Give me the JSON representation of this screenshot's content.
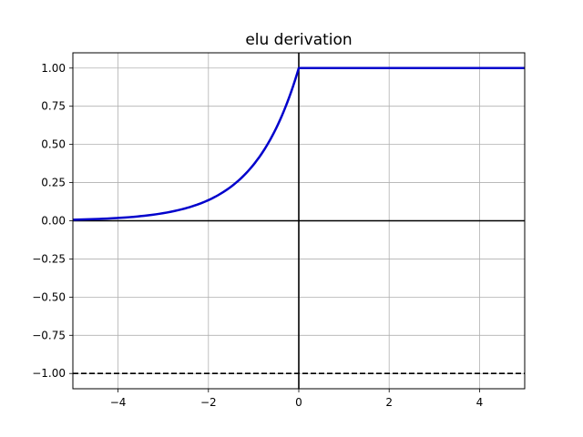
{
  "chart_data": {
    "type": "line",
    "title": "elu derivation",
    "xlabel": "",
    "ylabel": "",
    "xlim": [
      -5,
      5
    ],
    "ylim": [
      -1.1,
      1.1
    ],
    "grid": true,
    "x_ticks": [
      -4,
      -2,
      0,
      2,
      4
    ],
    "x_tick_labels": [
      "−4",
      "−2",
      "0",
      "2",
      "4"
    ],
    "y_ticks": [
      -1.0,
      -0.75,
      -0.5,
      -0.25,
      0.0,
      0.25,
      0.5,
      0.75,
      1.0
    ],
    "y_tick_labels": [
      "−1.00",
      "−0.75",
      "−0.50",
      "−0.25",
      "0.00",
      "0.25",
      "0.50",
      "0.75",
      "1.00"
    ],
    "series": [
      {
        "color": "#0000cc",
        "x": [
          -5,
          -4.5,
          -4,
          -3.5,
          -3,
          -2.5,
          -2,
          -1.75,
          -1.5,
          -1.25,
          -1,
          -0.75,
          -0.5,
          -0.25,
          0,
          0.01,
          1,
          2,
          3,
          4,
          5
        ],
        "y": [
          0.0067,
          0.0111,
          0.0183,
          0.0302,
          0.0498,
          0.0821,
          0.1353,
          0.1738,
          0.2231,
          0.2865,
          0.3679,
          0.4724,
          0.6065,
          0.7788,
          1.0,
          1.0,
          1.0,
          1.0,
          1.0,
          1.0,
          1.0
        ]
      }
    ],
    "reference_lines": [
      {
        "orientation": "horizontal",
        "value": 0,
        "style": "solid",
        "color": "#000000"
      },
      {
        "orientation": "vertical",
        "value": 0,
        "style": "solid",
        "color": "#000000"
      },
      {
        "orientation": "horizontal",
        "value": -1,
        "style": "dashed",
        "color": "#000000"
      }
    ]
  }
}
